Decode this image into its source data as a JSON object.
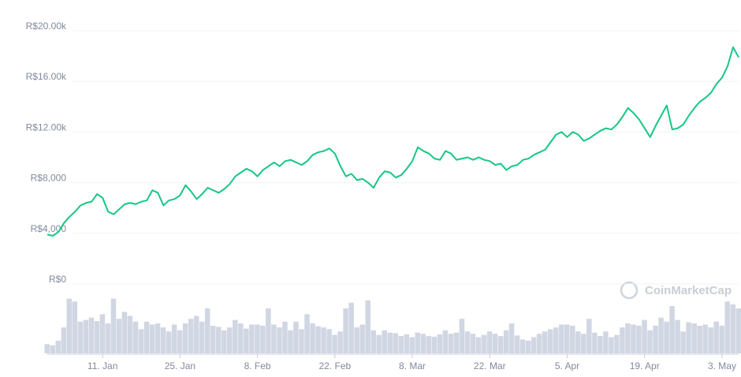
{
  "chart_data": {
    "type": "line",
    "watermark": "CoinMarketCap",
    "categories": [
      null,
      null,
      null,
      null,
      null,
      null,
      null,
      null,
      null,
      null,
      "11. Jan",
      null,
      null,
      null,
      null,
      null,
      null,
      null,
      null,
      null,
      null,
      null,
      null,
      null,
      "25. Jan",
      null,
      null,
      null,
      null,
      null,
      null,
      null,
      null,
      null,
      null,
      null,
      null,
      null,
      "8. Feb",
      null,
      null,
      null,
      null,
      null,
      null,
      null,
      null,
      null,
      null,
      null,
      null,
      null,
      "22. Feb",
      null,
      null,
      null,
      null,
      null,
      null,
      null,
      null,
      null,
      null,
      null,
      null,
      null,
      "8. Mar",
      null,
      null,
      null,
      null,
      null,
      null,
      null,
      null,
      null,
      null,
      null,
      null,
      null,
      "22. Mar",
      null,
      null,
      null,
      null,
      null,
      null,
      null,
      null,
      null,
      null,
      null,
      null,
      null,
      "5. Apr",
      null,
      null,
      null,
      null,
      null,
      null,
      null,
      null,
      null,
      null,
      null,
      null,
      null,
      "19. Apr",
      null,
      null,
      null,
      null,
      null,
      null,
      null,
      null,
      null,
      null,
      null,
      null,
      null,
      "3. May",
      null,
      null,
      null
    ],
    "values": [
      3900,
      3800,
      4100,
      4800,
      5300,
      5700,
      6200,
      6400,
      6500,
      7100,
      6800,
      5700,
      5500,
      5900,
      6300,
      6400,
      6300,
      6500,
      6600,
      7400,
      7200,
      6200,
      6600,
      6700,
      7000,
      7800,
      7300,
      6700,
      7100,
      7600,
      7400,
      7200,
      7500,
      7900,
      8500,
      8800,
      9100,
      8900,
      8500,
      9000,
      9300,
      9600,
      9300,
      9700,
      9800,
      9600,
      9400,
      9700,
      10200,
      10400,
      10500,
      10700,
      10300,
      9300,
      8500,
      8700,
      8200,
      8300,
      8000,
      7600,
      8400,
      8900,
      8800,
      8400,
      8600,
      9100,
      9700,
      10800,
      10500,
      10300,
      9900,
      9800,
      10500,
      10300,
      9800,
      9900,
      10000,
      9800,
      10000,
      9800,
      9700,
      9400,
      9500,
      9000,
      9300,
      9400,
      9800,
      9900,
      10200,
      10400,
      10600,
      11200,
      11800,
      12000,
      11600,
      12000,
      11800,
      11300,
      11500,
      11800,
      12100,
      12300,
      12200,
      12600,
      13200,
      13900,
      13500,
      13000,
      12300,
      11600,
      12500,
      13300,
      14100,
      12200,
      12300,
      12600,
      13300,
      13900,
      14400,
      14700,
      15100,
      15800,
      16300,
      17200,
      18700,
      17900
    ],
    "color": "#16c784",
    "volume": [
      16,
      14,
      22,
      45,
      95,
      90,
      55,
      58,
      62,
      56,
      68,
      52,
      95,
      60,
      72,
      65,
      55,
      42,
      55,
      50,
      52,
      45,
      38,
      50,
      40,
      52,
      60,
      65,
      55,
      78,
      48,
      46,
      40,
      45,
      58,
      52,
      43,
      50,
      50,
      48,
      78,
      50,
      45,
      55,
      40,
      55,
      42,
      68,
      52,
      47,
      45,
      42,
      32,
      38,
      78,
      88,
      45,
      50,
      92,
      40,
      32,
      40,
      36,
      35,
      30,
      33,
      28,
      36,
      34,
      30,
      29,
      33,
      40,
      34,
      36,
      60,
      38,
      34,
      28,
      32,
      38,
      34,
      30,
      40,
      52,
      31,
      24,
      22,
      28,
      34,
      38,
      42,
      45,
      50,
      50,
      48,
      38,
      34,
      60,
      36,
      30,
      38,
      28,
      32,
      45,
      52,
      50,
      48,
      58,
      40,
      48,
      62,
      55,
      82,
      58,
      38,
      54,
      52,
      48,
      50,
      45,
      55,
      48,
      90,
      85,
      78
    ],
    "volume_color": "#d1d6e3",
    "ylim": [
      0,
      20000
    ],
    "yticks": [
      {
        "value": 0,
        "label": "R$0"
      },
      {
        "value": 4000,
        "label": "R$4,000"
      },
      {
        "value": 8000,
        "label": "R$8,000"
      },
      {
        "value": 12000,
        "label": "R$12.00k"
      },
      {
        "value": 16000,
        "label": "R$16.00k"
      },
      {
        "value": 20000,
        "label": "R$20.00k"
      }
    ],
    "grid": true
  }
}
